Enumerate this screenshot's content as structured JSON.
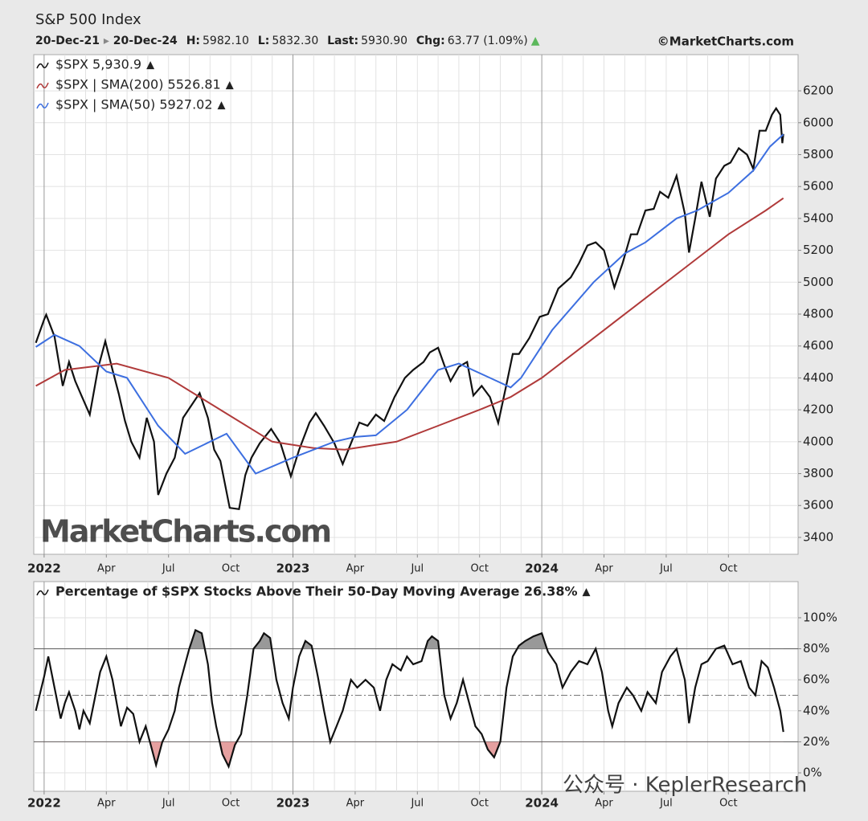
{
  "chart_data": [
    {
      "type": "line",
      "title": "S&P 500 Index",
      "date_range": [
        "20-Dec-21",
        "20-Dec-24"
      ],
      "stats": [
        {
          "label": "H:",
          "value": "5982.10"
        },
        {
          "label": "L:",
          "value": "5832.30"
        },
        {
          "label": "Last:",
          "value": "5930.90"
        },
        {
          "label": "Chg:",
          "value": "63.77 (1.09%)"
        }
      ],
      "source": "©MarketCharts.com",
      "watermark": "MarketCharts.com",
      "legend": "upper left",
      "grid": true,
      "xlim": [
        -0.5,
        36.36
      ],
      "ylim": [
        3294,
        6427
      ],
      "xticks": [
        {
          "value": 0,
          "label": "2022"
        },
        {
          "value": 3,
          "label": "Apr"
        },
        {
          "value": 6,
          "label": "Jul"
        },
        {
          "value": 9,
          "label": "Oct"
        },
        {
          "value": 12,
          "label": "2023"
        },
        {
          "value": 15,
          "label": "Apr"
        },
        {
          "value": 18,
          "label": "Jul"
        },
        {
          "value": 21,
          "label": "Oct"
        },
        {
          "value": 24,
          "label": "2024"
        },
        {
          "value": 27,
          "label": "Apr"
        },
        {
          "value": 30,
          "label": "Jul"
        },
        {
          "value": 33,
          "label": "Oct"
        }
      ],
      "x_minor_ticks": [
        1,
        2,
        4,
        5,
        7,
        8,
        10,
        11,
        13,
        14,
        16,
        17,
        19,
        20,
        22,
        23,
        25,
        26,
        28,
        29,
        31,
        32,
        34,
        35
      ],
      "yticks": [
        3400,
        3600,
        3800,
        4000,
        4200,
        4400,
        4600,
        4800,
        5000,
        5200,
        5400,
        5600,
        5800,
        6000,
        6200
      ],
      "series": [
        {
          "name": "$SPX 5,930.9",
          "color": "#111111",
          "x": [
            -0.4,
            0.0,
            0.1,
            0.5,
            0.9,
            1.2,
            1.5,
            1.8,
            2.2,
            2.6,
            2.95,
            3.3,
            3.6,
            3.9,
            4.2,
            4.6,
            4.95,
            5.3,
            5.5,
            5.9,
            6.3,
            6.7,
            7.5,
            7.9,
            8.2,
            8.5,
            8.95,
            9.4,
            9.7,
            10.0,
            10.4,
            10.95,
            11.4,
            11.9,
            12.3,
            12.8,
            13.1,
            13.5,
            14.0,
            14.4,
            14.8,
            15.2,
            15.6,
            16.0,
            16.4,
            16.9,
            17.4,
            17.8,
            18.3,
            18.6,
            19.0,
            19.3,
            19.6,
            20.0,
            20.4,
            20.7,
            21.1,
            21.5,
            21.9,
            22.3,
            22.6,
            22.9,
            23.4,
            23.9,
            24.3,
            24.8,
            25.4,
            25.8,
            26.2,
            26.6,
            27.0,
            27.5,
            27.9,
            28.3,
            28.6,
            29.0,
            29.4,
            29.7,
            30.1,
            30.5,
            30.9,
            31.1,
            31.4,
            31.7,
            32.1,
            32.4,
            32.8,
            33.1,
            33.5,
            33.9,
            34.2,
            34.5,
            34.8,
            35.1,
            35.3,
            35.5,
            35.6,
            35.65
          ],
          "values": [
            4620,
            4766,
            4796,
            4660,
            4350,
            4500,
            4380,
            4290,
            4170,
            4460,
            4630,
            4450,
            4300,
            4130,
            4000,
            3900,
            4150,
            4000,
            3666,
            3800,
            3900,
            4150,
            4305,
            4150,
            3950,
            3880,
            3585,
            3577,
            3790,
            3900,
            3990,
            4080,
            3990,
            3783,
            3950,
            4120,
            4179,
            4100,
            3990,
            3860,
            3990,
            4120,
            4100,
            4170,
            4130,
            4280,
            4400,
            4450,
            4500,
            4560,
            4589,
            4480,
            4380,
            4470,
            4500,
            4290,
            4350,
            4280,
            4117,
            4360,
            4550,
            4550,
            4650,
            4783,
            4800,
            4960,
            5030,
            5120,
            5230,
            5250,
            5200,
            4967,
            5120,
            5300,
            5300,
            5450,
            5460,
            5567,
            5530,
            5667,
            5430,
            5186,
            5400,
            5630,
            5410,
            5650,
            5730,
            5750,
            5840,
            5800,
            5710,
            5950,
            5950,
            6050,
            6090,
            6050,
            5872,
            5930
          ]
        },
        {
          "name": "$SPX | SMA(200) 5526.81",
          "color": "#b03a3a",
          "x": [
            -0.4,
            1,
            3.5,
            6,
            8.5,
            11,
            13,
            14.5,
            17,
            19,
            21,
            22.5,
            24,
            27,
            29,
            31,
            33,
            34.8,
            35.65
          ],
          "values": [
            4350,
            4450,
            4490,
            4400,
            4200,
            4000,
            3960,
            3950,
            4000,
            4100,
            4200,
            4280,
            4400,
            4700,
            4900,
            5100,
            5300,
            5450,
            5527
          ]
        },
        {
          "name": "$SPX | SMA(50) 5927.02",
          "color": "#3d6fe0",
          "x": [
            -0.4,
            0.5,
            1.7,
            3.0,
            4.0,
            5.5,
            6.8,
            8.8,
            10.2,
            12.0,
            14.0,
            15.0,
            16.0,
            17.5,
            19.0,
            20.0,
            21.5,
            22.5,
            23.0,
            24.5,
            26.5,
            28.0,
            29.0,
            30.5,
            31.5,
            33.0,
            34.2,
            35.0,
            35.65
          ],
          "values": [
            4594,
            4670,
            4600,
            4440,
            4400,
            4100,
            3924,
            4050,
            3800,
            3900,
            4000,
            4030,
            4040,
            4200,
            4450,
            4490,
            4400,
            4340,
            4400,
            4700,
            5000,
            5180,
            5250,
            5400,
            5450,
            5560,
            5700,
            5850,
            5927
          ]
        }
      ]
    },
    {
      "type": "line",
      "legend": "upper left",
      "grid": true,
      "overlay_text": "公众号 · KeplerResearch",
      "xlim": [
        -0.5,
        36.36
      ],
      "ylim": [
        -11.9,
        123.3
      ],
      "xticks": [
        {
          "value": 0,
          "label": "2022"
        },
        {
          "value": 3,
          "label": "Apr"
        },
        {
          "value": 6,
          "label": "Jul"
        },
        {
          "value": 9,
          "label": "Oct"
        },
        {
          "value": 12,
          "label": "2023"
        },
        {
          "value": 15,
          "label": "Apr"
        },
        {
          "value": 18,
          "label": "Jul"
        },
        {
          "value": 21,
          "label": "Oct"
        },
        {
          "value": 24,
          "label": "2024"
        },
        {
          "value": 27,
          "label": "Apr"
        },
        {
          "value": 30,
          "label": "Jul"
        },
        {
          "value": 33,
          "label": "Oct"
        }
      ],
      "x_minor_ticks": [
        1,
        2,
        4,
        5,
        7,
        8,
        10,
        11,
        13,
        14,
        16,
        17,
        19,
        20,
        22,
        23,
        25,
        26,
        28,
        29,
        31,
        32,
        34,
        35
      ],
      "yticks": [
        {
          "value": 0,
          "label": "0%"
        },
        {
          "value": 20,
          "label": "20%"
        },
        {
          "value": 40,
          "label": "40%"
        },
        {
          "value": 60,
          "label": "60%"
        },
        {
          "value": 80,
          "label": "80%"
        },
        {
          "value": 100,
          "label": "100%"
        }
      ],
      "overbought": 80,
      "oversold": 20,
      "midline": 50,
      "series": [
        {
          "name": "Percentage of $SPX Stocks Above Their 50-Day Moving Average 26.38%",
          "color": "#111111",
          "x": [
            -0.4,
            0.0,
            0.2,
            0.5,
            0.8,
            1.0,
            1.2,
            1.5,
            1.7,
            1.9,
            2.2,
            2.4,
            2.7,
            3.0,
            3.3,
            3.5,
            3.7,
            4.0,
            4.3,
            4.6,
            4.9,
            5.2,
            5.4,
            5.7,
            6.0,
            6.3,
            6.5,
            6.8,
            7.0,
            7.3,
            7.6,
            7.9,
            8.1,
            8.3,
            8.6,
            8.9,
            9.2,
            9.5,
            9.8,
            10.1,
            10.4,
            10.6,
            10.9,
            11.2,
            11.5,
            11.8,
            12.0,
            12.3,
            12.6,
            12.9,
            13.2,
            13.5,
            13.8,
            14.1,
            14.4,
            14.8,
            15.1,
            15.5,
            15.9,
            16.2,
            16.5,
            16.8,
            17.2,
            17.5,
            17.8,
            18.2,
            18.5,
            18.7,
            19.0,
            19.3,
            19.6,
            19.9,
            20.2,
            20.5,
            20.8,
            21.1,
            21.4,
            21.7,
            22.0,
            22.3,
            22.6,
            22.9,
            23.2,
            23.6,
            24.0,
            24.3,
            24.7,
            25.0,
            25.4,
            25.8,
            26.2,
            26.6,
            26.9,
            27.2,
            27.4,
            27.7,
            28.1,
            28.4,
            28.8,
            29.1,
            29.5,
            29.8,
            30.2,
            30.5,
            30.9,
            31.1,
            31.4,
            31.7,
            32.0,
            32.4,
            32.8,
            33.2,
            33.6,
            34.0,
            34.3,
            34.6,
            34.9,
            35.2,
            35.5,
            35.65
          ],
          "values": [
            40,
            62,
            75,
            55,
            35,
            45,
            52,
            40,
            28,
            40,
            32,
            45,
            65,
            75,
            60,
            45,
            30,
            42,
            38,
            20,
            30,
            15,
            5,
            20,
            28,
            40,
            55,
            70,
            80,
            92,
            90,
            70,
            45,
            30,
            12,
            4,
            18,
            25,
            50,
            80,
            85,
            90,
            87,
            60,
            45,
            35,
            55,
            75,
            85,
            82,
            62,
            40,
            20,
            30,
            40,
            60,
            55,
            60,
            55,
            40,
            60,
            70,
            66,
            75,
            70,
            72,
            85,
            88,
            85,
            50,
            35,
            45,
            60,
            45,
            30,
            25,
            15,
            10,
            20,
            55,
            75,
            82,
            85,
            88,
            90,
            78,
            70,
            55,
            65,
            72,
            70,
            80,
            65,
            40,
            30,
            45,
            55,
            50,
            40,
            52,
            45,
            65,
            75,
            80,
            60,
            32,
            55,
            70,
            72,
            80,
            82,
            70,
            72,
            55,
            50,
            72,
            68,
            55,
            40,
            26.38
          ]
        }
      ]
    }
  ]
}
